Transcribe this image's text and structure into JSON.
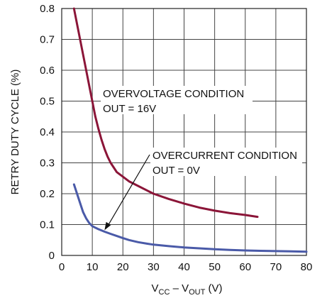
{
  "chart_data": {
    "type": "line",
    "title": "",
    "xlabel": {
      "prefix": "V",
      "sub1": "CC",
      "mid": " – V",
      "sub2": "OUT",
      "suffix": " (V)"
    },
    "ylabel": "RETRY DUTY CYCLE (%)",
    "xlim": [
      0,
      80
    ],
    "ylim": [
      0,
      0.8
    ],
    "xticks": [
      0,
      10,
      20,
      30,
      40,
      50,
      60,
      70,
      80
    ],
    "yticks": [
      0,
      0.1,
      0.2,
      0.3,
      0.4,
      0.5,
      0.6,
      0.7,
      0.8
    ],
    "xtick_labels": [
      "0",
      "10",
      "20",
      "30",
      "40",
      "50",
      "60",
      "70",
      "80"
    ],
    "ytick_labels": [
      "0",
      "0.1",
      "0.2",
      "0.3",
      "0.4",
      "0.5",
      "0.6",
      "0.7",
      "0.8"
    ],
    "grid": true,
    "series": [
      {
        "color": "#8b1538",
        "x": [
          4,
          5,
          6,
          7,
          8,
          9,
          10,
          11,
          12,
          13,
          14,
          15,
          16,
          17,
          18,
          20,
          22,
          25,
          28,
          30,
          35,
          40,
          45,
          50,
          55,
          60,
          64
        ],
        "y": [
          0.8,
          0.75,
          0.7,
          0.65,
          0.6,
          0.55,
          0.5,
          0.45,
          0.41,
          0.375,
          0.345,
          0.32,
          0.3,
          0.285,
          0.27,
          0.255,
          0.24,
          0.225,
          0.21,
          0.2,
          0.183,
          0.168,
          0.155,
          0.145,
          0.137,
          0.131,
          0.125
        ]
      },
      {
        "color": "#4a5aa8",
        "x": [
          4,
          5,
          6,
          7,
          8,
          9,
          10,
          11,
          12,
          14,
          16,
          18,
          20,
          22,
          25,
          28,
          30,
          35,
          40,
          45,
          50,
          55,
          60,
          65,
          70,
          75,
          80
        ],
        "y": [
          0.23,
          0.2,
          0.17,
          0.14,
          0.12,
          0.105,
          0.095,
          0.09,
          0.085,
          0.077,
          0.07,
          0.063,
          0.056,
          0.05,
          0.043,
          0.038,
          0.035,
          0.03,
          0.026,
          0.023,
          0.02,
          0.018,
          0.016,
          0.015,
          0.014,
          0.013,
          0.012
        ]
      }
    ],
    "annotations": [
      {
        "lines": [
          "OVERVOLTAGE CONDITION",
          "OUT = 16V"
        ]
      },
      {
        "lines": [
          "OVERCURRENT CONDITION",
          "OUT = 0V"
        ],
        "arrow_to": {
          "x": 14,
          "y": 0.082
        }
      }
    ]
  }
}
